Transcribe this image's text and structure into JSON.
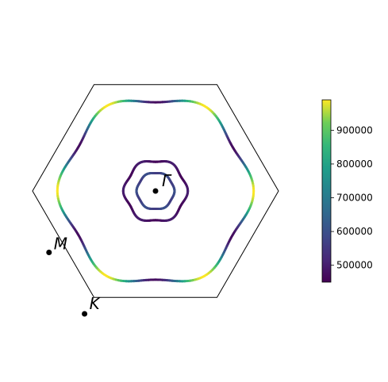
{
  "chart_data": {
    "type": "fermi-surface",
    "brillouin_zone": "hexagonal",
    "high_symmetry_points": [
      {
        "label": "Γ",
        "kx": 0.0,
        "ky": 0.0
      },
      {
        "label": "M",
        "kx": -0.866,
        "ky": -0.5
      },
      {
        "label": "K",
        "kx": -0.577,
        "ky": -1.0
      }
    ],
    "contours": [
      {
        "name": "",
        "radius": 0.15,
        "anisotropy": 0.03,
        "value_range": [
          560000,
          600000
        ]
      },
      {
        "name": "",
        "radius": 0.25,
        "anisotropy": 0.05,
        "value_range": [
          460000,
          500000
        ]
      },
      {
        "name": "",
        "radius": 0.76,
        "anisotropy": 0.05,
        "value_range": [
          470000,
          990000
        ]
      }
    ],
    "colorbar": {
      "colormap": "viridis",
      "min": 450000,
      "max": 990000,
      "ticks": [
        500000,
        600000,
        700000,
        800000,
        900000
      ],
      "tick_labels": [
        "500000",
        "600000",
        "700000",
        "800000",
        "900000"
      ]
    },
    "axes_visible": false
  },
  "colors": {
    "bz_edge": "#000000",
    "point_marker": "#000000"
  }
}
